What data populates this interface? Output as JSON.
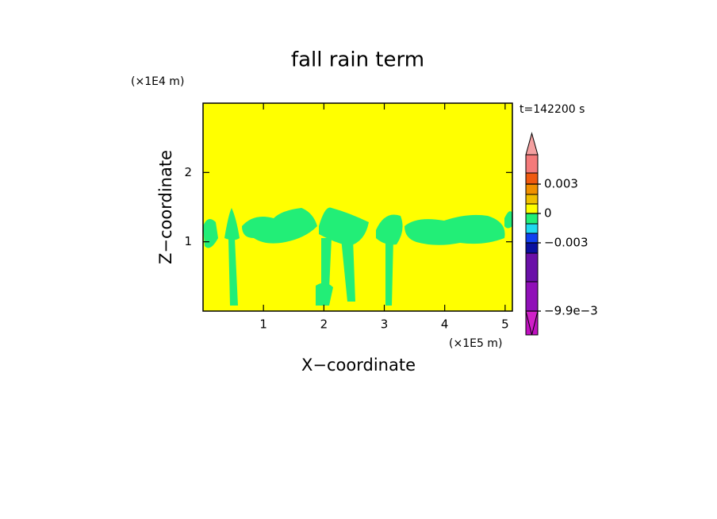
{
  "chart_data": {
    "type": "contour",
    "title": "fall rain term",
    "x_label": "X−coordinate",
    "y_label": "Z−coordinate",
    "x_unit": "(×1E5 m)",
    "y_unit": "(×1E4 m)",
    "annotation": "t=142200 s",
    "xlim": [
      0,
      5.12
    ],
    "ylim": [
      0,
      3
    ],
    "xticks": [
      1,
      2,
      3,
      4,
      5
    ],
    "yticks": [
      1,
      2
    ],
    "background_color": "#ffff00",
    "region_color": "#22ee77",
    "colorbar": {
      "colors": [
        "#f4a0a0",
        "#f47a7a",
        "#f05a10",
        "#f09000",
        "#f0c000",
        "#ffff00",
        "#22ee77",
        "#20d8f0",
        "#1040f0",
        "#0a10a0",
        "#6a10a8",
        "#9010b8",
        "#c010c0",
        "#d020c8"
      ],
      "ticks": [
        0.003,
        0,
        {
          "value": -0.003,
          "label": "−0.003"
        },
        {
          "value": -0.0099,
          "label": "−9.9e−3"
        }
      ]
    }
  }
}
